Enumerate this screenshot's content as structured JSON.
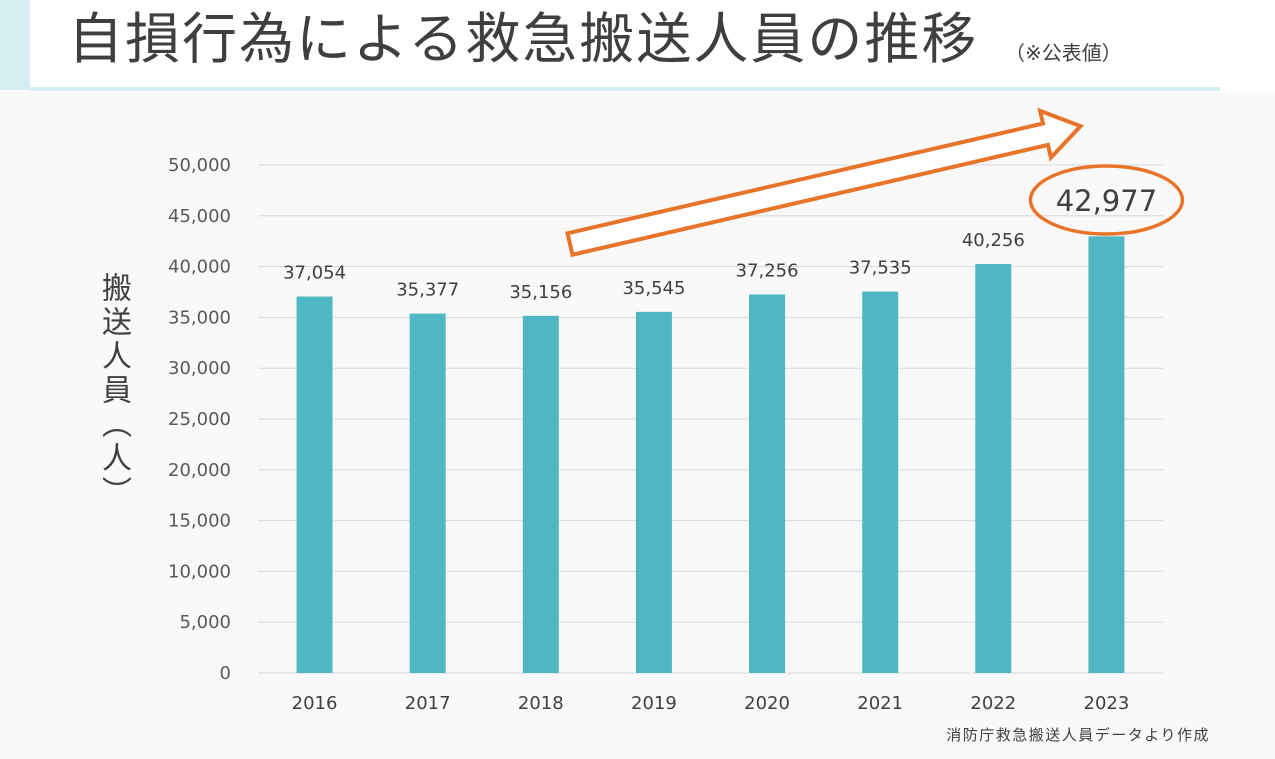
{
  "slide": {
    "title": "自損行為による救急搬送人員の推移",
    "note": "（※公表値）",
    "source": "消防庁救急搬送人員データより作成"
  },
  "colors": {
    "bar": "#4FB7C1",
    "accent": "#E8742A",
    "title_band": "#D6EEF2",
    "text": "#404040"
  },
  "chart_data": {
    "type": "bar",
    "categories": [
      "2016",
      "2017",
      "2018",
      "2019",
      "2020",
      "2021",
      "2022",
      "2023"
    ],
    "values": [
      37054,
      35377,
      35156,
      35545,
      37256,
      37535,
      40256,
      42977
    ],
    "data_labels": [
      "37,054",
      "35,377",
      "35,156",
      "35,545",
      "37,256",
      "37,535",
      "40,256",
      "42,977"
    ],
    "ylabel": "搬送人員（人）",
    "ylim": [
      0,
      50000
    ],
    "yticks": [
      0,
      5000,
      10000,
      15000,
      20000,
      25000,
      30000,
      35000,
      40000,
      45000,
      50000
    ],
    "ytick_labels": [
      "0",
      "5,000",
      "10,000",
      "15,000",
      "20,000",
      "25,000",
      "30,000",
      "35,000",
      "40,000",
      "45,000",
      "50,000"
    ],
    "grid": true,
    "highlight_index": 7
  }
}
